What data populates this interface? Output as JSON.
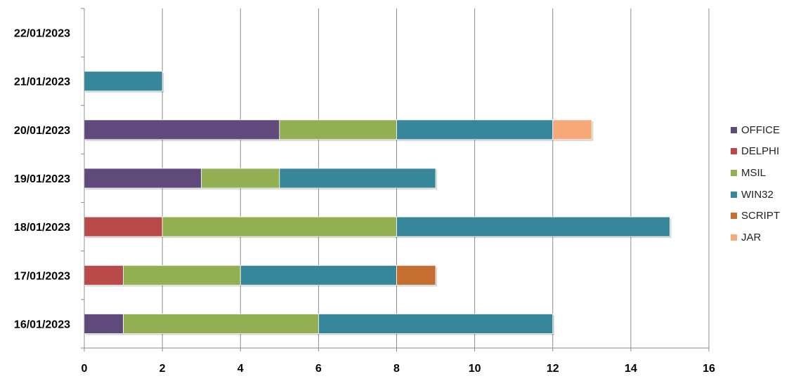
{
  "chart_data": {
    "type": "bar",
    "orientation": "horizontal",
    "stacked": true,
    "categories": [
      "16/01/2023",
      "17/01/2023",
      "18/01/2023",
      "19/01/2023",
      "20/01/2023",
      "21/01/2023",
      "22/01/2023"
    ],
    "series": [
      {
        "name": "OFFICE",
        "color": "#604A7B",
        "values": [
          1,
          0,
          0,
          3,
          5,
          0,
          0
        ]
      },
      {
        "name": "DELPHI",
        "color": "#B84A4A",
        "values": [
          0,
          1,
          2,
          0,
          0,
          0,
          0
        ]
      },
      {
        "name": "MSIL",
        "color": "#92AF52",
        "values": [
          5,
          3,
          6,
          2,
          3,
          0,
          0
        ]
      },
      {
        "name": "WIN32",
        "color": "#37869A",
        "values": [
          6,
          4,
          7,
          4,
          4,
          2,
          0
        ]
      },
      {
        "name": "SCRIPT",
        "color": "#C46F31",
        "values": [
          0,
          1,
          0,
          0,
          0,
          0,
          0
        ]
      },
      {
        "name": "JAR",
        "color": "#F7A979",
        "values": [
          0,
          0,
          0,
          0,
          1,
          0,
          0
        ]
      }
    ],
    "x_ticks": [
      "0",
      "2",
      "4",
      "6",
      "8",
      "10",
      "12",
      "14",
      "16"
    ],
    "xlim": [
      0,
      16
    ],
    "grid": "vertical",
    "legend_position": "right",
    "title": "",
    "xlabel": "",
    "ylabel": ""
  }
}
